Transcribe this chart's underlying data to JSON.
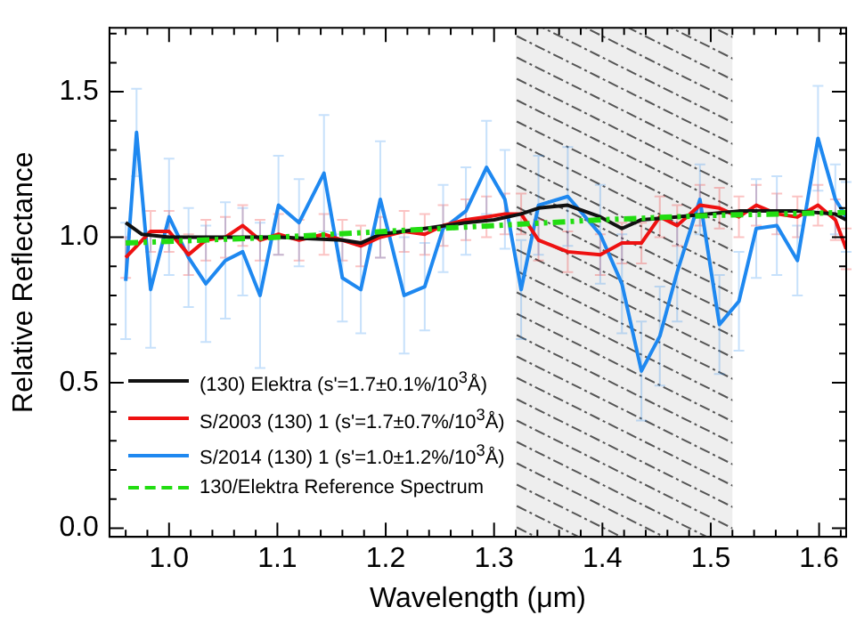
{
  "chart_data": {
    "type": "line",
    "xlabel": "Wavelength (μm)",
    "ylabel": "Relative Reflectance",
    "xlim": [
      0.945,
      1.625
    ],
    "ylim": [
      -0.03,
      1.72
    ],
    "xticks": [
      {
        "value": 0.96,
        "label": null
      },
      {
        "value": 0.98,
        "label": null
      },
      {
        "value": 1.0,
        "label": "1.0"
      },
      {
        "value": 1.02,
        "label": null
      },
      {
        "value": 1.04,
        "label": null
      },
      {
        "value": 1.06,
        "label": null
      },
      {
        "value": 1.08,
        "label": null
      },
      {
        "value": 1.1,
        "label": "1.1"
      },
      {
        "value": 1.12,
        "label": null
      },
      {
        "value": 1.14,
        "label": null
      },
      {
        "value": 1.16,
        "label": null
      },
      {
        "value": 1.18,
        "label": null
      },
      {
        "value": 1.2,
        "label": "1.2"
      },
      {
        "value": 1.22,
        "label": null
      },
      {
        "value": 1.24,
        "label": null
      },
      {
        "value": 1.26,
        "label": null
      },
      {
        "value": 1.28,
        "label": null
      },
      {
        "value": 1.3,
        "label": "1.3"
      },
      {
        "value": 1.32,
        "label": null
      },
      {
        "value": 1.34,
        "label": null
      },
      {
        "value": 1.36,
        "label": null
      },
      {
        "value": 1.38,
        "label": null
      },
      {
        "value": 1.4,
        "label": "1.4"
      },
      {
        "value": 1.42,
        "label": null
      },
      {
        "value": 1.44,
        "label": null
      },
      {
        "value": 1.46,
        "label": null
      },
      {
        "value": 1.48,
        "label": null
      },
      {
        "value": 1.5,
        "label": "1.5"
      },
      {
        "value": 1.52,
        "label": null
      },
      {
        "value": 1.54,
        "label": null
      },
      {
        "value": 1.56,
        "label": null
      },
      {
        "value": 1.58,
        "label": null
      },
      {
        "value": 1.6,
        "label": "1.6"
      },
      {
        "value": 1.62,
        "label": null
      }
    ],
    "yticks": [
      {
        "value": 0,
        "label": "0.0"
      },
      {
        "value": 0.1,
        "label": null
      },
      {
        "value": 0.2,
        "label": null
      },
      {
        "value": 0.3,
        "label": null
      },
      {
        "value": 0.4,
        "label": null
      },
      {
        "value": 0.5,
        "label": "0.5"
      },
      {
        "value": 0.6,
        "label": null
      },
      {
        "value": 0.7,
        "label": null
      },
      {
        "value": 0.8,
        "label": null
      },
      {
        "value": 0.9,
        "label": null
      },
      {
        "value": 1.0,
        "label": "1.0"
      },
      {
        "value": 1.1,
        "label": null
      },
      {
        "value": 1.2,
        "label": null
      },
      {
        "value": 1.3,
        "label": null
      },
      {
        "value": 1.4,
        "label": null
      },
      {
        "value": 1.5,
        "label": "1.5"
      },
      {
        "value": 1.6,
        "label": null
      },
      {
        "value": 1.7,
        "label": null
      }
    ],
    "grid": false,
    "legend": "bottom left",
    "marker": "none",
    "bands": [
      {
        "axis": "x",
        "from": 1.32,
        "to": 1.52,
        "color": "#555555"
      }
    ],
    "series": [
      {
        "name": "S/2014 (130) 1  (s'=1.0±1.2%/10$^{3}$Å)",
        "color": "#1e88f0",
        "x": [
          0.96,
          0.97,
          0.983,
          1.0,
          1.018,
          1.034,
          1.052,
          1.068,
          1.084,
          1.101,
          1.12,
          1.143,
          1.16,
          1.177,
          1.195,
          1.217,
          1.236,
          1.253,
          1.274,
          1.293,
          1.31,
          1.325,
          1.341,
          1.368,
          1.398,
          1.418,
          1.436,
          1.453,
          1.469,
          1.49,
          1.508,
          1.526,
          1.542,
          1.561,
          1.58,
          1.599,
          1.615,
          1.625
        ],
        "values": [
          0.85,
          1.36,
          0.82,
          1.07,
          0.93,
          0.84,
          0.92,
          0.95,
          0.8,
          1.11,
          1.05,
          1.22,
          0.86,
          0.82,
          1.13,
          0.8,
          0.83,
          1.03,
          1.09,
          1.24,
          1.13,
          0.82,
          1.11,
          1.14,
          1.01,
          0.84,
          0.54,
          0.66,
          0.88,
          1.13,
          0.7,
          0.78,
          1.03,
          1.04,
          0.92,
          1.34,
          1.13,
          1.07
        ],
        "errors": [
          0.2,
          0.15,
          0.2,
          0.2,
          0.17,
          0.2,
          0.2,
          0.15,
          0.25,
          0.17,
          0.15,
          0.2,
          0.15,
          0.15,
          0.2,
          0.2,
          0.15,
          0.15,
          0.15,
          0.16,
          0.17,
          0.17,
          0.17,
          0.17,
          0.17,
          0.17,
          0.17,
          0.17,
          0.17,
          0.12,
          0.17,
          0.17,
          0.17,
          0.17,
          0.12,
          0.18,
          0.12,
          0.12
        ]
      },
      {
        "name": "S/2003 (130) 1  (s'=1.7±0.7%/10$^{3}$Å)",
        "color": "#ee1111",
        "x": [
          0.96,
          0.983,
          1.0,
          1.018,
          1.034,
          1.052,
          1.068,
          1.084,
          1.101,
          1.12,
          1.143,
          1.16,
          1.177,
          1.195,
          1.217,
          1.236,
          1.253,
          1.274,
          1.293,
          1.31,
          1.325,
          1.341,
          1.368,
          1.398,
          1.418,
          1.436,
          1.453,
          1.469,
          1.49,
          1.508,
          1.526,
          1.542,
          1.561,
          1.58,
          1.599,
          1.615,
          1.625
        ],
        "values": [
          0.93,
          1.02,
          1.02,
          0.94,
          0.99,
          1.0,
          1.04,
          0.99,
          1.01,
          0.99,
          1.01,
          0.99,
          0.97,
          1.0,
          1.02,
          1.01,
          1.04,
          1.06,
          1.07,
          1.08,
          1.08,
          0.99,
          0.95,
          0.94,
          0.98,
          0.98,
          1.07,
          1.04,
          1.11,
          1.1,
          1.07,
          1.11,
          1.08,
          1.07,
          1.11,
          1.06,
          0.96
        ],
        "errors": [
          0.07,
          0.07,
          0.07,
          0.07,
          0.07,
          0.07,
          0.07,
          0.07,
          0.07,
          0.07,
          0.07,
          0.07,
          0.07,
          0.07,
          0.07,
          0.07,
          0.07,
          0.07,
          0.07,
          0.07,
          0.07,
          0.07,
          0.07,
          0.07,
          0.07,
          0.07,
          0.07,
          0.07,
          0.07,
          0.07,
          0.07,
          0.07,
          0.07,
          0.07,
          0.07,
          0.07,
          0.07
        ]
      },
      {
        "name": "(130) Elektra  (s'=1.7±0.1%/10$^{3}$Å)",
        "color": "#111111",
        "x": [
          0.96,
          0.975,
          1.0,
          1.05,
          1.1,
          1.16,
          1.177,
          1.195,
          1.236,
          1.274,
          1.3,
          1.325,
          1.341,
          1.368,
          1.398,
          1.418,
          1.436,
          1.469,
          1.526,
          1.58,
          1.615,
          1.625
        ],
        "values": [
          1.05,
          1.01,
          1.0,
          1.0,
          1.0,
          0.99,
          0.98,
          1.01,
          1.03,
          1.05,
          1.06,
          1.08,
          1.1,
          1.11,
          1.07,
          1.03,
          1.06,
          1.07,
          1.09,
          1.09,
          1.08,
          1.06
        ]
      },
      {
        "name": "130/Elektra Reference Spectrum",
        "color": "#22dd11",
        "line_style": "dashed",
        "x": [
          0.96,
          1.1,
          1.2,
          1.3,
          1.4,
          1.5,
          1.625
        ],
        "values": [
          0.98,
          1.0,
          1.02,
          1.04,
          1.06,
          1.075,
          1.085
        ]
      }
    ]
  }
}
